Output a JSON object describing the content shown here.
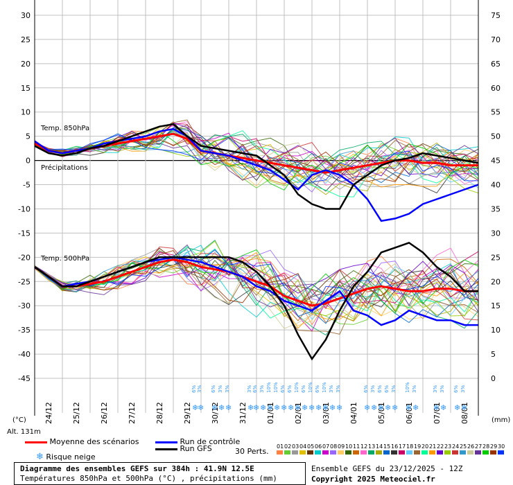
{
  "chart_data": {
    "type": "line",
    "title": "Diagramme des ensembles GEFS sur 384h : 41.9N 12.5E",
    "subtitle": "Températures 850hPa et 500hPa (°C) , précipitations (mm)",
    "left_axis": {
      "unit": "(°C)",
      "ticks": [
        30,
        25,
        20,
        15,
        10,
        5,
        0,
        -5,
        -10,
        -15,
        -20,
        -25,
        -30,
        -35,
        -40,
        -45
      ],
      "range": [
        -45,
        30
      ]
    },
    "right_axis": {
      "unit": "(mm)",
      "ticks": [
        75,
        70,
        65,
        60,
        55,
        50,
        45,
        40,
        35,
        30,
        25,
        20,
        15,
        10,
        5,
        0
      ],
      "range": [
        0,
        75
      ]
    },
    "dates": [
      "24/12",
      "25/12",
      "26/12",
      "27/12",
      "28/12",
      "29/12",
      "30/12",
      "31/12",
      "01/01",
      "02/01",
      "03/01",
      "04/01",
      "05/01",
      "06/01",
      "07/01",
      "08/01"
    ],
    "annotations": {
      "t850": "Temp. 850hPa",
      "precip": "Précipitations",
      "t500": "Temp. 500hPa",
      "altitude": "Alt. 131m"
    },
    "series": [
      {
        "name": "Moyenne des scénarios",
        "color": "#ff0000",
        "group": "t850",
        "x": [
          0,
          0.5,
          1,
          1.5,
          2,
          2.5,
          3,
          3.5,
          4,
          4.5,
          5,
          5.5,
          6,
          6.5,
          7,
          7.5,
          8,
          8.5,
          9,
          9.5,
          10,
          10.5,
          11,
          11.5,
          12,
          12.5,
          13,
          13.5,
          14,
          14.5,
          15,
          15.5,
          16
        ],
        "values": [
          3.5,
          2,
          1.5,
          2,
          2.5,
          3,
          3.5,
          4,
          4.5,
          5,
          5.5,
          4.5,
          2,
          1.5,
          1,
          0.5,
          0,
          -0.5,
          -1,
          -1.5,
          -2,
          -2.5,
          -2,
          -1.5,
          -1,
          -0.5,
          0,
          0,
          -0.5,
          -0.5,
          -1,
          -1,
          -1
        ]
      },
      {
        "name": "Run de contrôle",
        "color": "#0000ff",
        "group": "t850",
        "x": [
          0,
          0.5,
          1,
          1.5,
          2,
          2.5,
          3,
          3.5,
          4,
          4.5,
          5,
          5.5,
          6,
          6.5,
          7,
          7.5,
          8,
          8.5,
          9,
          9.5,
          10,
          10.5,
          11,
          11.5,
          12,
          12.5,
          13,
          13.5,
          14,
          14.5,
          15,
          15.5,
          16
        ],
        "values": [
          4,
          2,
          1.5,
          2,
          2.5,
          3.5,
          4,
          4.5,
          5,
          6,
          6.5,
          5,
          2,
          1.5,
          1,
          0,
          -1,
          -2,
          -4,
          -6,
          -3,
          -2,
          -3,
          -5,
          -8,
          -12.5,
          -12,
          -11,
          -9,
          -8,
          -7,
          -6,
          -5
        ]
      },
      {
        "name": "Run GFS",
        "color": "#000000",
        "group": "t850",
        "x": [
          0,
          0.5,
          1,
          1.5,
          2,
          2.5,
          3,
          3.5,
          4,
          4.5,
          5,
          5.5,
          6,
          6.5,
          7,
          7.5,
          8,
          8.5,
          9,
          9.5,
          10,
          10.5,
          11,
          11.5,
          12,
          12.5,
          13,
          13.5,
          14,
          14.5,
          15,
          15.5,
          16
        ],
        "values": [
          3,
          1.5,
          1,
          1.5,
          2.5,
          3,
          4,
          5,
          6,
          7,
          7.5,
          5,
          3,
          2.5,
          2,
          1.5,
          1,
          -1,
          -3,
          -7,
          -9,
          -10,
          -10,
          -5,
          -3,
          -1,
          0,
          0.5,
          1.5,
          1,
          0.5,
          0,
          -0.5
        ]
      },
      {
        "name": "Moyenne des scénarios",
        "color": "#ff0000",
        "group": "t500",
        "x": [
          0,
          0.5,
          1,
          1.5,
          2,
          2.5,
          3,
          3.5,
          4,
          4.5,
          5,
          5.5,
          6,
          6.5,
          7,
          7.5,
          8,
          8.5,
          9,
          9.5,
          10,
          10.5,
          11,
          11.5,
          12,
          12.5,
          13,
          13.5,
          14,
          14.5,
          15,
          15.5,
          16
        ],
        "values": [
          -22,
          -24,
          -26,
          -26,
          -25.5,
          -25,
          -24,
          -23,
          -22,
          -21,
          -20.5,
          -21,
          -22,
          -22.5,
          -23,
          -24,
          -25,
          -26,
          -28,
          -29,
          -30,
          -29.5,
          -28.5,
          -27.5,
          -26.5,
          -26,
          -26.5,
          -27,
          -27,
          -26.5,
          -26.5,
          -27,
          -27
        ]
      },
      {
        "name": "Run de contrôle",
        "color": "#0000ff",
        "group": "t500",
        "x": [
          0,
          0.5,
          1,
          1.5,
          2,
          2.5,
          3,
          3.5,
          4,
          4.5,
          5,
          5.5,
          6,
          6.5,
          7,
          7.5,
          8,
          8.5,
          9,
          9.5,
          10,
          10.5,
          11,
          11.5,
          12,
          12.5,
          13,
          13.5,
          14,
          14.5,
          15,
          15.5,
          16
        ],
        "values": [
          -22,
          -24,
          -26,
          -25.5,
          -25,
          -24,
          -23,
          -22,
          -21,
          -20.5,
          -20,
          -20.5,
          -21,
          -22,
          -23,
          -24,
          -26,
          -27,
          -29,
          -30,
          -31,
          -29,
          -27,
          -31,
          -32,
          -34,
          -33,
          -31,
          -32,
          -33,
          -33,
          -34,
          -34
        ]
      },
      {
        "name": "Run GFS",
        "color": "#000000",
        "group": "t500",
        "x": [
          0,
          0.5,
          1,
          1.5,
          2,
          2.5,
          3,
          3.5,
          4,
          4.5,
          5,
          5.5,
          6,
          6.5,
          7,
          7.5,
          8,
          8.5,
          9,
          9.5,
          10,
          10.5,
          11,
          11.5,
          12,
          12.5,
          13,
          13.5,
          14,
          14.5,
          15,
          15.5,
          16
        ],
        "values": [
          -22,
          -24,
          -26,
          -26,
          -25,
          -24,
          -23,
          -22,
          -21,
          -20,
          -20,
          -20,
          -20,
          -20,
          -20,
          -21,
          -23,
          -26,
          -30,
          -36,
          -41,
          -37,
          -31,
          -26,
          -23,
          -19,
          -18,
          -17,
          -19,
          -22,
          -24,
          -27,
          -27
        ]
      }
    ],
    "snow_risk": {
      "label": "Risque neige",
      "markers": [
        {
          "x": 5.8,
          "pct": "6%"
        },
        {
          "x": 6.0,
          "pct": "3%"
        },
        {
          "x": 6.5,
          "pct": "6%"
        },
        {
          "x": 6.75,
          "pct": "3%"
        },
        {
          "x": 7.0,
          "pct": "3%"
        },
        {
          "x": 7.8,
          "pct": "3%"
        },
        {
          "x": 8.0,
          "pct": "6%"
        },
        {
          "x": 8.25,
          "pct": "3%"
        },
        {
          "x": 8.5,
          "pct": "10%"
        },
        {
          "x": 8.75,
          "pct": "10%"
        },
        {
          "x": 9.0,
          "pct": "6%"
        },
        {
          "x": 9.25,
          "pct": "6%"
        },
        {
          "x": 9.5,
          "pct": "10%"
        },
        {
          "x": 9.75,
          "pct": "6%"
        },
        {
          "x": 10.0,
          "pct": "10%"
        },
        {
          "x": 10.25,
          "pct": "6%"
        },
        {
          "x": 10.5,
          "pct": "10%"
        },
        {
          "x": 10.75,
          "pct": "3%"
        },
        {
          "x": 11.0,
          "pct": "3%"
        },
        {
          "x": 12.0,
          "pct": "6%"
        },
        {
          "x": 12.25,
          "pct": "3%"
        },
        {
          "x": 12.5,
          "pct": "6%"
        },
        {
          "x": 12.75,
          "pct": "6%"
        },
        {
          "x": 13.0,
          "pct": "3%"
        },
        {
          "x": 13.5,
          "pct": "10%"
        },
        {
          "x": 13.75,
          "pct": "3%"
        },
        {
          "x": 14.5,
          "pct": "3%"
        },
        {
          "x": 14.75,
          "pct": "3%"
        },
        {
          "x": 15.25,
          "pct": "6%"
        },
        {
          "x": 15.5,
          "pct": "3%"
        }
      ]
    },
    "legend": [
      {
        "label": "Moyenne des scénarios",
        "color": "#ff0000"
      },
      {
        "label": "Run de contrôle",
        "color": "#0000ff"
      },
      {
        "label": "Run GFS",
        "color": "#000000"
      }
    ],
    "perts": {
      "label": "30 Perts.",
      "items": [
        {
          "n": "01",
          "color": "#ff8040"
        },
        {
          "n": "02",
          "color": "#66cc33"
        },
        {
          "n": "03",
          "color": "#999999"
        },
        {
          "n": "04",
          "color": "#e0c000"
        },
        {
          "n": "05",
          "color": "#663300"
        },
        {
          "n": "06",
          "color": "#00cccc"
        },
        {
          "n": "07",
          "color": "#cc00cc"
        },
        {
          "n": "08",
          "color": "#9966ff"
        },
        {
          "n": "09",
          "color": "#ffcc66"
        },
        {
          "n": "10",
          "color": "#336600"
        },
        {
          "n": "11",
          "color": "#cc6600"
        },
        {
          "n": "12",
          "color": "#ff66cc"
        },
        {
          "n": "13",
          "color": "#00aa66"
        },
        {
          "n": "14",
          "color": "#aaaa00"
        },
        {
          "n": "15",
          "color": "#0066cc"
        },
        {
          "n": "16",
          "color": "#333333"
        },
        {
          "n": "17",
          "color": "#cc0066"
        },
        {
          "n": "18",
          "color": "#66ccff"
        },
        {
          "n": "19",
          "color": "#996633"
        },
        {
          "n": "20",
          "color": "#00ff99"
        },
        {
          "n": "21",
          "color": "#ff9900"
        },
        {
          "n": "22",
          "color": "#6600cc"
        },
        {
          "n": "23",
          "color": "#99cc00"
        },
        {
          "n": "24",
          "color": "#cc3333"
        },
        {
          "n": "25",
          "color": "#3399cc"
        },
        {
          "n": "26",
          "color": "#cccc99"
        },
        {
          "n": "27",
          "color": "#663399"
        },
        {
          "n": "28",
          "color": "#00cc00"
        },
        {
          "n": "29",
          "color": "#993300"
        },
        {
          "n": "30",
          "color": "#0033ff"
        }
      ]
    }
  },
  "footer": {
    "title": "Diagramme des ensembles GEFS sur 384h : 41.9N 12.5E",
    "subtitle": "Températures 850hPa et 500hPa (°C) , précipitations (mm)",
    "run": "Ensemble GEFS du 23/12/2025 - 12Z",
    "copyright": "Copyright 2025 Meteociel.fr"
  }
}
